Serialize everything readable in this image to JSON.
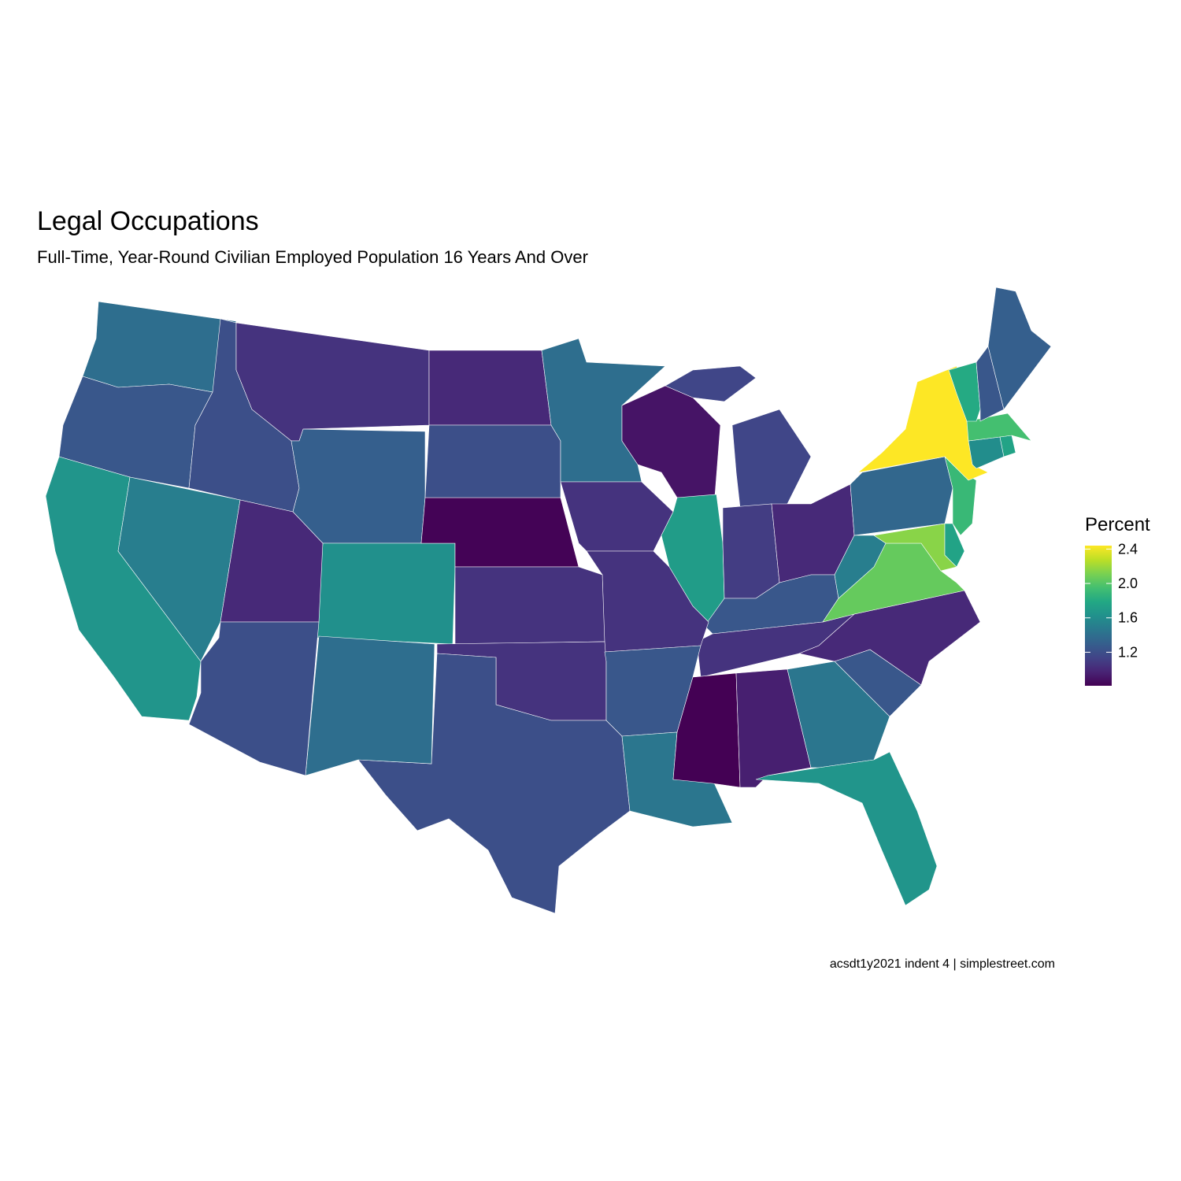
{
  "chart_data": {
    "type": "choropleth",
    "title": "Legal Occupations",
    "subtitle": "Full-Time, Year-Round Civilian Employed Population 16 Years And Over",
    "caption": "acsdt1y2021 indent 4 | simplestreet.com",
    "legend_title": "Percent",
    "colormap": "viridis",
    "clim": [
      0.81,
      2.44
    ],
    "ticks": [
      1.2,
      1.6,
      {
        "value": 2,
        "label": "2.0"
      },
      2.4
    ],
    "values": [
      1.4,
      1.25,
      1.65,
      1.5,
      1.2,
      1.05,
      1.3,
      1.0,
      1.62,
      0.82,
      1.2,
      1.0,
      1.4,
      1.05,
      0.9,
      1.15,
      1.15,
      1.7,
      1.1,
      1.0,
      1.25,
      1.05,
      1.05,
      1.05,
      1.05,
      1.2,
      1.4,
      1.2,
      1.25,
      1.45,
      0.81,
      0.95,
      1.45,
      1.65,
      1.25,
      1.0,
      2.05,
      1.5,
      1.35,
      2.15,
      1.75,
      1.9,
      2.44,
      1.6,
      1.75,
      1.95,
      1.8,
      1.25,
      1.3
    ]
  }
}
